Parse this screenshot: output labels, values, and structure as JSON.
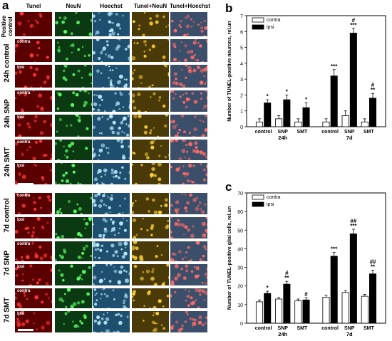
{
  "panel_a": {
    "letter": "a",
    "columns": [
      "Tunel",
      "NeuN",
      "Hoechst",
      "Tunel+NeuN",
      "Tunel+Hoechst"
    ],
    "group_labels": [
      "Positive control",
      "24h control",
      "24h SNP",
      "24h SMT",
      "7d control",
      "7d SNP",
      "7d SMT"
    ],
    "row_tags": [
      "",
      "contra",
      "ipsi",
      "contra",
      "ipsi",
      "contra",
      "ipsi",
      "contra",
      "ipsi",
      "contra",
      "ipsi",
      "contra",
      "ipsi"
    ]
  },
  "chart_data": [
    {
      "letter": "b",
      "type": "bar",
      "ylabel": "Number of TUNEL-positive neurons, rel.un",
      "ylim": [
        0,
        7
      ],
      "yticks": [
        0,
        1,
        2,
        3,
        4,
        5,
        6,
        7
      ],
      "legend_position": "top-left",
      "categories": [
        "control",
        "SNP",
        "SMT",
        "control",
        "SNP",
        "SMT"
      ],
      "groups": [
        "24h",
        "7d"
      ],
      "series": [
        {
          "name": "contra",
          "values": [
            0.3,
            0.5,
            0.3,
            0.3,
            0.7,
            0.3
          ],
          "errors": [
            0.2,
            0.2,
            0.2,
            0.2,
            0.3,
            0.2
          ]
        },
        {
          "name": "ipsi",
          "values": [
            1.5,
            1.7,
            1.2,
            3.2,
            5.9,
            1.8
          ],
          "errors": [
            0.2,
            0.3,
            0.3,
            0.4,
            0.3,
            0.3
          ]
        }
      ],
      "annotations": [
        "*",
        "*",
        "*",
        "***",
        "#\n***",
        "#\n**"
      ]
    },
    {
      "letter": "c",
      "type": "bar",
      "ylabel": "Number of TUNEL-positive glial cells, rel.un",
      "ylim": [
        0,
        70
      ],
      "yticks": [
        0,
        10,
        20,
        30,
        40,
        50,
        60,
        70
      ],
      "legend_position": "top-left",
      "categories": [
        "control",
        "SNP",
        "SMT",
        "control",
        "SNP",
        "SMT"
      ],
      "groups": [
        "24h",
        "7d"
      ],
      "series": [
        {
          "name": "contra",
          "values": [
            11.5,
            13,
            12,
            14,
            16.5,
            14.5
          ],
          "errors": [
            1,
            0.8,
            1,
            1,
            1,
            1
          ]
        },
        {
          "name": "ipsi",
          "values": [
            16,
            21,
            12.5,
            36,
            48,
            26.5
          ],
          "errors": [
            1.2,
            1.5,
            1.2,
            2,
            2.5,
            2
          ]
        }
      ],
      "annotations": [
        "*",
        "#\n**",
        "#",
        "***",
        "##\n***",
        "##\n**"
      ]
    }
  ],
  "colors": {
    "contra": "#ffffff",
    "ipsi": "#000000",
    "tunel": "#5a0000",
    "neun": "#0b3a12",
    "hoechst": "#1e4f6e",
    "merge1": "#4a3a08",
    "merge2": "#3b4f6a"
  }
}
